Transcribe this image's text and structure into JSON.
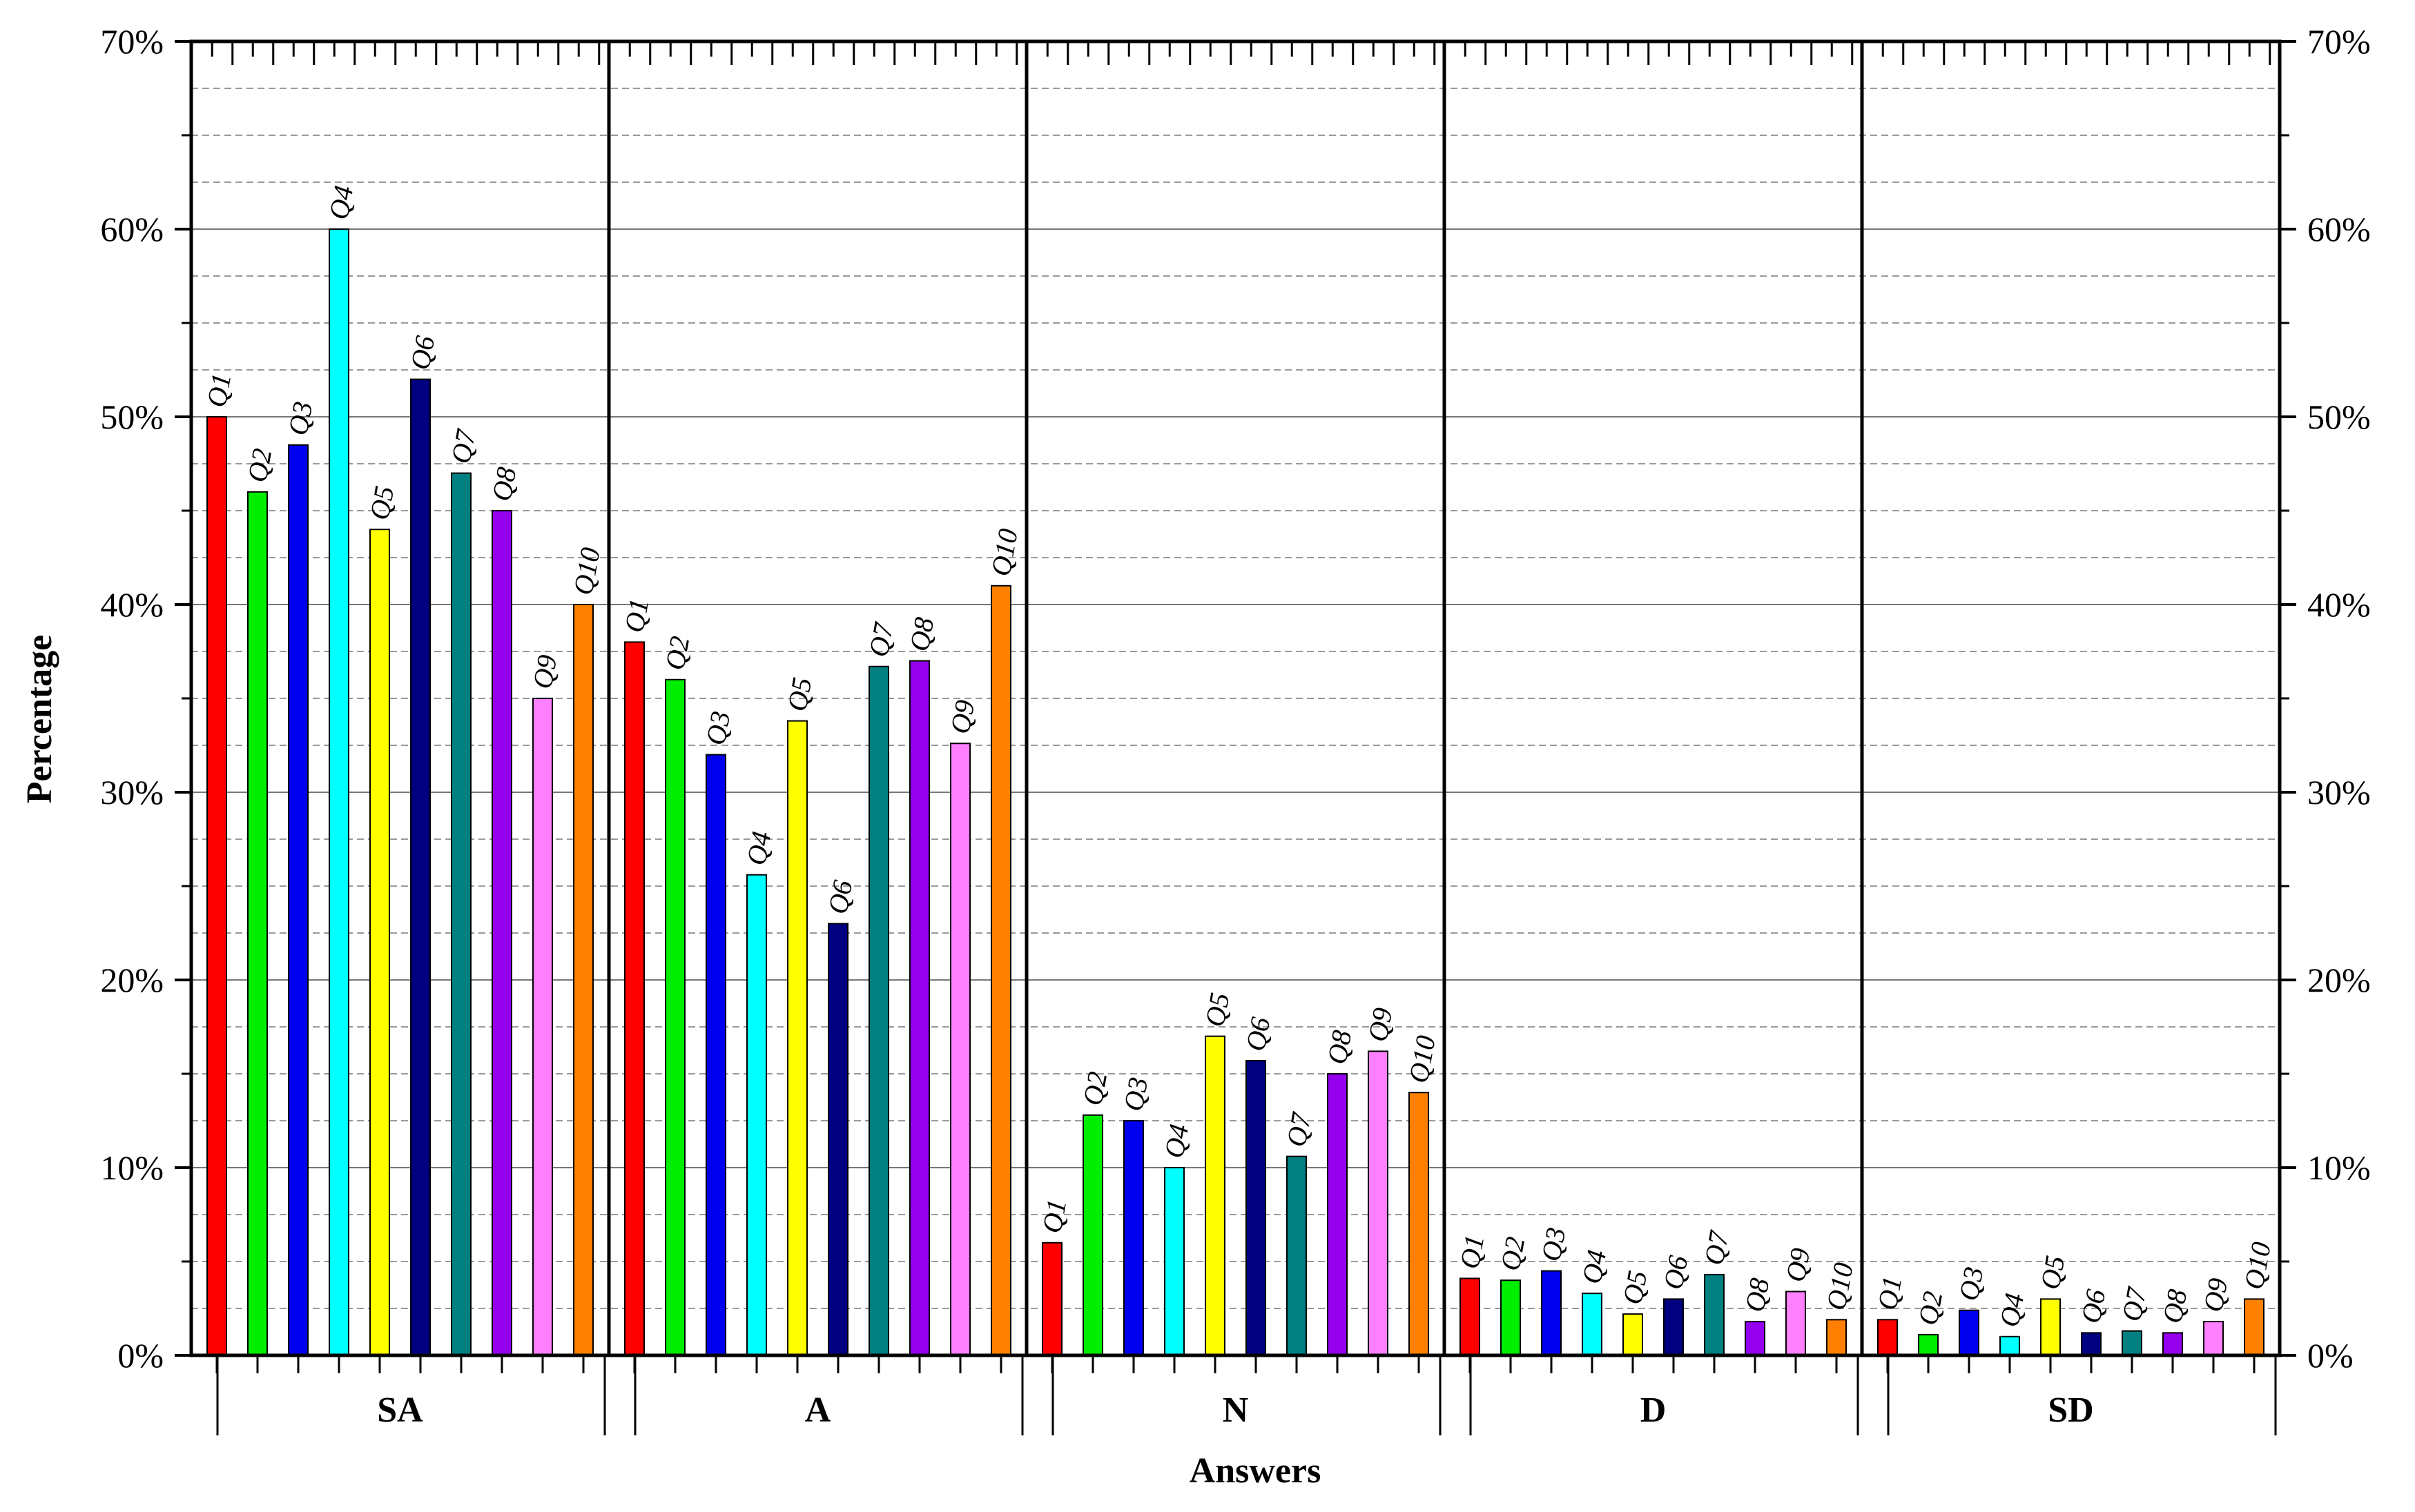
{
  "colors": {
    "Q1": "#ff0000",
    "Q2": "#00ee00",
    "Q3": "#0000ee",
    "Q4": "#00ffff",
    "Q5": "#ffff00",
    "Q6": "#000080",
    "Q7": "#008080",
    "Q8": "#9400ee",
    "Q9": "#ff80ff",
    "Q10": "#ff8000"
  },
  "chart_data": {
    "type": "bar",
    "xlabel": "Answers",
    "ylabel": "Percentage",
    "ylim": [
      0,
      70
    ],
    "y_ticks": [
      "0%",
      "10%",
      "20%",
      "30%",
      "40%",
      "50%",
      "60%",
      "70%"
    ],
    "y_tick_values": [
      0,
      10,
      20,
      30,
      40,
      50,
      60,
      70
    ],
    "grid": true,
    "categories": [
      "SA",
      "A",
      "N",
      "D",
      "SD"
    ],
    "series": [
      {
        "name": "Q1",
        "values": [
          50,
          38,
          6,
          4.1,
          1.9
        ]
      },
      {
        "name": "Q2",
        "values": [
          46,
          36,
          12.8,
          4,
          1.1
        ]
      },
      {
        "name": "Q3",
        "values": [
          48.5,
          32,
          12.5,
          4.5,
          2.4
        ]
      },
      {
        "name": "Q4",
        "values": [
          60,
          25.6,
          10,
          3.3,
          1
        ]
      },
      {
        "name": "Q5",
        "values": [
          44,
          33.8,
          17,
          2.2,
          3
        ]
      },
      {
        "name": "Q6",
        "values": [
          52,
          23,
          15.7,
          3,
          1.2
        ]
      },
      {
        "name": "Q7",
        "values": [
          47,
          36.7,
          10.6,
          4.3,
          1.3
        ]
      },
      {
        "name": "Q8",
        "values": [
          45,
          37,
          15,
          1.8,
          1.2
        ]
      },
      {
        "name": "Q9",
        "values": [
          35,
          32.6,
          16.2,
          3.4,
          1.8
        ]
      },
      {
        "name": "Q10",
        "values": [
          40,
          41,
          14,
          1.9,
          3
        ]
      }
    ]
  }
}
